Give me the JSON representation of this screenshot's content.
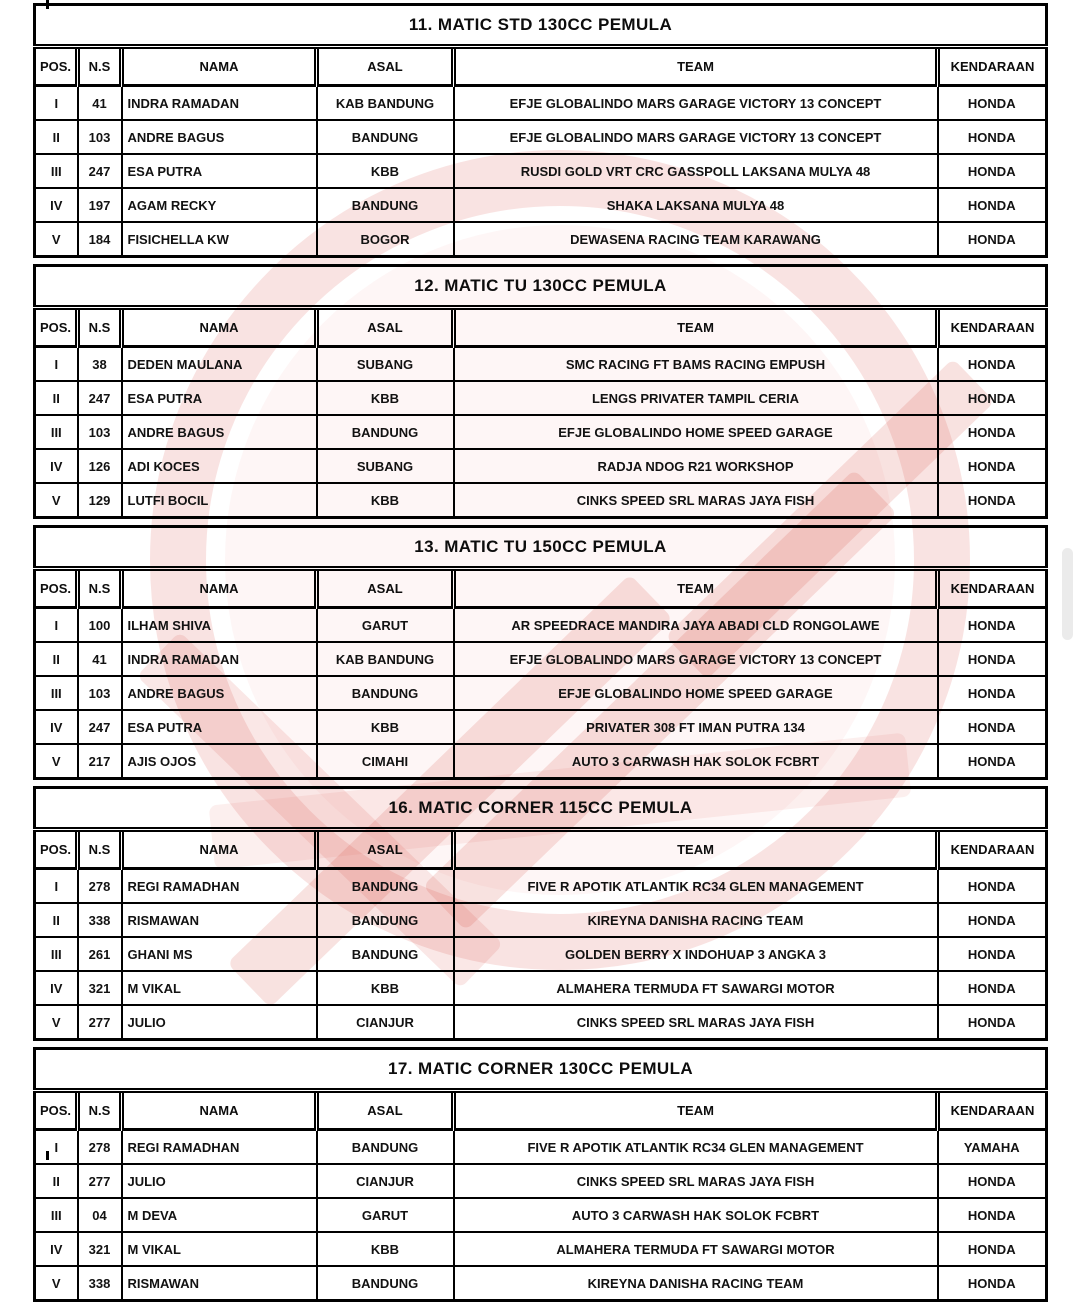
{
  "document": {
    "kind": "race-results-sheet",
    "text_color": "#121212",
    "border_color": "#000000",
    "background_color": "#ffffff"
  },
  "watermark": {
    "name": "red-club-emblem-watermark",
    "base_color": "#d23c32"
  },
  "scrollbar": {
    "thumb_color": "#ebebeb"
  },
  "columns": [
    "POS.",
    "N.S",
    "NAMA",
    "ASAL",
    "TEAM",
    "KENDARAAN"
  ],
  "tables": [
    {
      "title": "11. MATIC STD 130CC PEMULA",
      "rows": [
        [
          "I",
          "41",
          "INDRA RAMADAN",
          "KAB BANDUNG",
          "EFJE GLOBALINDO MARS GARAGE VICTORY 13 CONCEPT",
          "HONDA"
        ],
        [
          "II",
          "103",
          "ANDRE BAGUS",
          "BANDUNG",
          "EFJE GLOBALINDO MARS GARAGE VICTORY 13 CONCEPT",
          "HONDA"
        ],
        [
          "III",
          "247",
          "ESA PUTRA",
          "KBB",
          "RUSDI GOLD VRT CRC GASSPOLL LAKSANA MULYA 48",
          "HONDA"
        ],
        [
          "IV",
          "197",
          "AGAM RECKY",
          "BANDUNG",
          "SHAKA LAKSANA MULYA 48",
          "HONDA"
        ],
        [
          "V",
          "184",
          "FISICHELLA KW",
          "BOGOR",
          "DEWASENA RACING TEAM KARAWANG",
          "HONDA"
        ]
      ]
    },
    {
      "title": "12. MATIC TU 130CC PEMULA",
      "rows": [
        [
          "I",
          "38",
          "DEDEN MAULANA",
          "SUBANG",
          "SMC RACING FT BAMS RACING EMPUSH",
          "HONDA"
        ],
        [
          "II",
          "247",
          "ESA PUTRA",
          "KBB",
          "LENGS PRIVATER TAMPIL CERIA",
          "HONDA"
        ],
        [
          "III",
          "103",
          "ANDRE BAGUS",
          "BANDUNG",
          "EFJE GLOBALINDO HOME SPEED GARAGE",
          "HONDA"
        ],
        [
          "IV",
          "126",
          "ADI KOCES",
          "SUBANG",
          "RADJA NDOG R21 WORKSHOP",
          "HONDA"
        ],
        [
          "V",
          "129",
          "LUTFI BOCIL",
          "KBB",
          "CINKS SPEED SRL MARAS JAYA FISH",
          "HONDA"
        ]
      ]
    },
    {
      "title": "13. MATIC TU 150CC PEMULA",
      "rows": [
        [
          "I",
          "100",
          "ILHAM SHIVA",
          "GARUT",
          "AR SPEEDRACE MANDIRA JAYA ABADI CLD RONGOLAWE",
          "HONDA"
        ],
        [
          "II",
          "41",
          "INDRA RAMADAN",
          "KAB BANDUNG",
          "EFJE GLOBALINDO MARS GARAGE VICTORY 13 CONCEPT",
          "HONDA"
        ],
        [
          "III",
          "103",
          "ANDRE BAGUS",
          "BANDUNG",
          "EFJE GLOBALINDO HOME SPEED GARAGE",
          "HONDA"
        ],
        [
          "IV",
          "247",
          "ESA PUTRA",
          "KBB",
          "PRIVATER 308 FT IMAN PUTRA 134",
          "HONDA"
        ],
        [
          "V",
          "217",
          "AJIS OJOS",
          "CIMAHI",
          "AUTO 3 CARWASH HAK SOLOK FCBRT",
          "HONDA"
        ]
      ]
    },
    {
      "title": "16. MATIC CORNER 115CC PEMULA",
      "rows": [
        [
          "I",
          "278",
          "REGI RAMADHAN",
          "BANDUNG",
          "FIVE R APOTIK ATLANTIK RC34 GLEN MANAGEMENT",
          "HONDA"
        ],
        [
          "II",
          "338",
          "RISMAWAN",
          "BANDUNG",
          "KIREYNA DANISHA RACING TEAM",
          "HONDA"
        ],
        [
          "III",
          "261",
          "GHANI MS",
          "BANDUNG",
          "GOLDEN BERRY X INDOHUAP 3 ANGKA 3",
          "HONDA"
        ],
        [
          "IV",
          "321",
          "M VIKAL",
          "KBB",
          "ALMAHERA TERMUDA FT SAWARGI MOTOR",
          "HONDA"
        ],
        [
          "V",
          "277",
          "JULIO",
          "CIANJUR",
          "CINKS SPEED SRL MARAS JAYA FISH",
          "HONDA"
        ]
      ]
    },
    {
      "title": "17. MATIC CORNER 130CC PEMULA",
      "rows": [
        [
          "I",
          "278",
          "REGI RAMADHAN",
          "BANDUNG",
          "FIVE R APOTIK ATLANTIK RC34 GLEN MANAGEMENT",
          "YAMAHA"
        ],
        [
          "II",
          "277",
          "JULIO",
          "CIANJUR",
          "CINKS SPEED SRL MARAS JAYA FISH",
          "HONDA"
        ],
        [
          "III",
          "04",
          "M DEVA",
          "GARUT",
          "AUTO 3 CARWASH HAK SOLOK FCBRT",
          "HONDA"
        ],
        [
          "IV",
          "321",
          "M VIKAL",
          "KBB",
          "ALMAHERA TERMUDA FT SAWARGI MOTOR",
          "HONDA"
        ],
        [
          "V",
          "338",
          "RISMAWAN",
          "BANDUNG",
          "KIREYNA DANISHA RACING TEAM",
          "HONDA"
        ]
      ]
    }
  ]
}
